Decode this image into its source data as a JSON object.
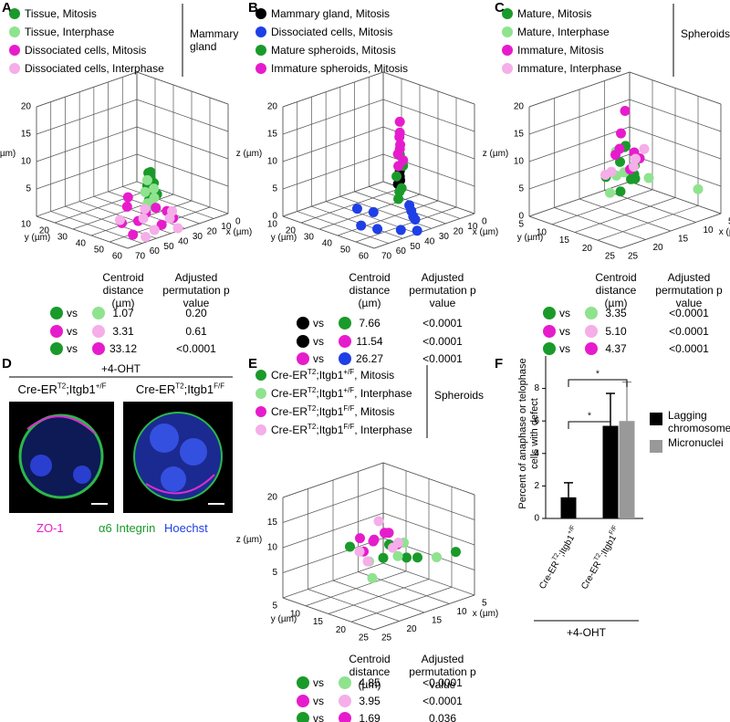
{
  "panels": [
    {
      "label": "A",
      "chart_data": {
        "type": "scatter3d",
        "legend_title": "Mammary gland",
        "xlabel": "x (µm)",
        "ylabel": "y (µm)",
        "zlabel": "z (µm)",
        "xlim": [
          0,
          70
        ],
        "xticks": [
          0,
          10,
          20,
          30,
          40,
          50,
          60,
          70
        ],
        "ylim": [
          10,
          60
        ],
        "yticks": [
          10,
          20,
          30,
          40,
          50,
          60
        ],
        "zlim": [
          0,
          20
        ],
        "zticks": [
          5,
          10,
          15,
          20
        ],
        "series": [
          {
            "name": "Tissue, Mitosis",
            "color": "#1a9a2a",
            "x": [
              35,
              35,
              34,
              36,
              35,
              33,
              36,
              34
            ],
            "y": [
              45,
              45,
              46,
              44,
              45,
              47,
              45,
              43
            ],
            "z": [
              9,
              8,
              7,
              6.5,
              5.5,
              5,
              4,
              8.5
            ]
          },
          {
            "name": "Tissue, Interphase",
            "color": "#8fe38f",
            "x": [
              36,
              34,
              35,
              37,
              33,
              35
            ],
            "y": [
              44,
              46,
              47,
              45,
              44,
              42
            ],
            "z": [
              7.5,
              6,
              4.5,
              3.5,
              2.5,
              5
            ]
          },
          {
            "name": "Dissociated cells, Mitosis",
            "color": "#e61ccc",
            "x": [
              50,
              45,
              40,
              30,
              55,
              38,
              25,
              42,
              60,
              32
            ],
            "y": [
              50,
              40,
              55,
              50,
              45,
              35,
              40,
              48,
              55,
              55
            ],
            "z": [
              2,
              3,
              1,
              2,
              1.5,
              3.5,
              1,
              2.5,
              1,
              1.5
            ]
          },
          {
            "name": "Dissociated cells, Interphase",
            "color": "#f5aee8",
            "x": [
              45,
              35,
              28,
              50,
              40,
              20,
              55,
              30
            ],
            "y": [
              55,
              60,
              50,
              40,
              45,
              45,
              58,
              38
            ],
            "z": [
              0.5,
              0.5,
              0.5,
              1,
              1,
              0.5,
              0.5,
              1
            ]
          }
        ]
      },
      "table": {
        "header": [
          "Centroid distance (µm)",
          "Adjusted permutation p value"
        ],
        "rows": [
          {
            "colors": [
              "#1a9a2a",
              "#8fe38f"
            ],
            "vs": "vs",
            "distance": "1.07",
            "p": "0.20"
          },
          {
            "colors": [
              "#e61ccc",
              "#f5aee8"
            ],
            "vs": "vs",
            "distance": "3.31",
            "p": "0.61"
          },
          {
            "colors": [
              "#1a9a2a",
              "#e61ccc"
            ],
            "vs": "vs",
            "distance": "33.12",
            "p": "<0.0001"
          }
        ]
      }
    },
    {
      "label": "B",
      "chart_data": {
        "type": "scatter3d",
        "xlabel": "x (µm)",
        "ylabel": "y (µm)",
        "zlabel": "z (µm)",
        "xlim": [
          0,
          70
        ],
        "xticks": [
          0,
          10,
          20,
          30,
          40,
          50,
          60,
          70
        ],
        "ylim": [
          10,
          60
        ],
        "yticks": [
          10,
          20,
          30,
          40,
          50,
          60
        ],
        "zlim": [
          0,
          20
        ],
        "zticks": [
          0,
          5,
          10,
          15,
          20
        ],
        "series": [
          {
            "name": "Mammary gland, Mitosis",
            "color": "#000000",
            "x": [
              33,
              33,
              34,
              33
            ],
            "y": [
              45,
              45,
              46,
              44
            ],
            "z": [
              9,
              8,
              7.5,
              6.5
            ]
          },
          {
            "name": "Dissociated cells, Mitosis",
            "color": "#1f3fe6",
            "x": [
              55,
              45,
              40,
              30,
              50,
              35,
              25,
              60,
              20,
              45
            ],
            "y": [
              50,
              40,
              60,
              50,
              35,
              55,
              45,
              45,
              40,
              55
            ],
            "z": [
              1,
              2,
              0.5,
              1,
              2.5,
              1.5,
              1,
              1.5,
              1,
              0.5
            ]
          },
          {
            "name": "Mature spheroids, Mitosis",
            "color": "#1a9a2a",
            "x": [
              33,
              32,
              34,
              33,
              32,
              34
            ],
            "y": [
              45,
              46,
              44,
              46,
              44,
              45
            ],
            "z": [
              12,
              10,
              8,
              6,
              5,
              4
            ]
          },
          {
            "name": "Immature spheroids, Mitosis",
            "color": "#e61ccc",
            "x": [
              33,
              33,
              32,
              34,
              33,
              33,
              32,
              34
            ],
            "y": [
              45,
              45,
              44,
              46,
              45,
              44,
              46,
              45
            ],
            "z": [
              18,
              16,
              15,
              14,
              13,
              12,
              11,
              10
            ]
          }
        ]
      },
      "table": {
        "header": [
          "Centroid distance (µm)",
          "Adjusted permutation p value"
        ],
        "rows": [
          {
            "colors": [
              "#000000",
              "#1a9a2a"
            ],
            "vs": "vs",
            "distance": "7.66",
            "p": "<0.0001"
          },
          {
            "colors": [
              "#000000",
              "#e61ccc"
            ],
            "vs": "vs",
            "distance": "11.54",
            "p": "<0.0001"
          },
          {
            "colors": [
              "#e61ccc",
              "#1f3fe6"
            ],
            "vs": "vs",
            "distance": "26.27",
            "p": "<0.0001"
          }
        ]
      }
    },
    {
      "label": "C",
      "chart_data": {
        "type": "scatter3d",
        "legend_title": "Spheroids",
        "xlabel": "x (µm)",
        "ylabel": "y (µm)",
        "zlabel": "z (µm)",
        "xlim": [
          5,
          25
        ],
        "xticks": [
          5,
          10,
          15,
          20,
          25
        ],
        "ylim": [
          5,
          25
        ],
        "yticks": [
          5,
          10,
          15,
          20,
          25
        ],
        "zlim": [
          0,
          20
        ],
        "zticks": [
          0,
          5,
          10,
          15,
          20
        ],
        "series": [
          {
            "name": "Mature, Mitosis",
            "color": "#1a9a2a",
            "x": [
              14,
              16,
              15,
              13,
              17,
              15,
              16,
              14,
              12
            ],
            "y": [
              14,
              15,
              17,
              15,
              13,
              14,
              16,
              16,
              13
            ],
            "z": [
              12,
              10,
              8,
              6,
              7,
              4,
              13,
              9,
              5
            ]
          },
          {
            "name": "Mature, Interphase",
            "color": "#8fe38f",
            "x": [
              5,
              14,
              17,
              13,
              15,
              18
            ],
            "y": [
              20,
              12,
              17,
              18,
              13,
              15
            ],
            "z": [
              3,
              6,
              9,
              7,
              11,
              5
            ]
          },
          {
            "name": "Immature, Mitosis",
            "color": "#e61ccc",
            "x": [
              15,
              14,
              16,
              17,
              13,
              15,
              14
            ],
            "y": [
              15,
              13,
              14,
              16,
              16,
              17,
              15
            ],
            "z": [
              19,
              14,
              11,
              13,
              10,
              12,
              8
            ]
          },
          {
            "name": "Immature, Interphase",
            "color": "#f5aee8",
            "x": [
              12,
              16,
              18,
              13,
              15
            ],
            "y": [
              14,
              18,
              14,
              17,
              12
            ],
            "z": [
              9,
              10,
              8,
              12,
              7
            ]
          }
        ]
      },
      "table": {
        "header": [
          "Centroid distance (µm)",
          "Adjusted permutation p value"
        ],
        "rows": [
          {
            "colors": [
              "#1a9a2a",
              "#8fe38f"
            ],
            "vs": "vs",
            "distance": "3.35",
            "p": "<0.0001"
          },
          {
            "colors": [
              "#e61ccc",
              "#f5aee8"
            ],
            "vs": "vs",
            "distance": "5.10",
            "p": "<0.0001"
          },
          {
            "colors": [
              "#1a9a2a",
              "#e61ccc"
            ],
            "vs": "vs",
            "distance": "4.37",
            "p": "<0.0001"
          }
        ]
      }
    },
    {
      "label": "D",
      "treatment": "+4-OHT",
      "images": [
        [
          "Cre-ER",
          "T2",
          ";Itgb1",
          "+/F"
        ],
        [
          "Cre-ER",
          "T2",
          ";Itgb1",
          "F/F"
        ]
      ],
      "stains": [
        {
          "text": "ZO-1",
          "color": "#e61ccc"
        },
        {
          "text": "α6",
          "color": "#1a9a2a"
        },
        {
          "text": "Integrin",
          "color": "#1a9a2a"
        },
        {
          "text": "Hoechst",
          "color": "#1f3fe6"
        }
      ]
    },
    {
      "label": "E",
      "chart_data": {
        "type": "scatter3d",
        "legend_title": "Spheroids",
        "xlabel": "x (µm)",
        "ylabel": "y (µm)",
        "zlabel": "z (µm)",
        "xlim": [
          5,
          25
        ],
        "xticks": [
          5,
          10,
          15,
          20,
          25
        ],
        "ylim": [
          5,
          25
        ],
        "yticks": [
          5,
          10,
          15,
          20,
          25
        ],
        "zlim": [
          0,
          20
        ],
        "zticks": [
          5,
          10,
          15,
          20
        ],
        "series": [
          {
            "name": [
              "Cre-ER",
              "T2",
              ";Itgb1",
              "+/F",
              ", Mitosis"
            ],
            "color": "#1a9a2a",
            "x": [
              12,
              15,
              10,
              18,
              14,
              6
            ],
            "y": [
              14,
              16,
              18,
              12,
              20,
              22
            ],
            "z": [
              9,
              8,
              7,
              10,
              9,
              8
            ]
          },
          {
            "name": [
              "Cre-ER",
              "T2",
              ";Itgb1",
              "+/F",
              ", Interphase"
            ],
            "color": "#8fe38f",
            "x": [
              13,
              16,
              10,
              19,
              8
            ],
            "y": [
              17,
              14,
              15,
              18,
              20
            ],
            "z": [
              8,
              7,
              9,
              6,
              7
            ]
          },
          {
            "name": [
              "Cre-ER",
              "T2",
              ";Itgb1",
              "F/F",
              ", Mitosis"
            ],
            "color": "#e61ccc",
            "x": [
              15,
              17,
              13,
              16,
              14,
              18,
              12
            ],
            "y": [
              14,
              16,
              15,
              12,
              18,
              15,
              13
            ],
            "z": [
              11,
              12,
              12,
              11,
              11,
              10,
              11
            ]
          },
          {
            "name": [
              "Cre-ER",
              "T2",
              ";Itgb1",
              "F/F",
              ", Interphase"
            ],
            "color": "#f5aee8",
            "x": [
              15,
              14,
              17,
              12,
              19
            ],
            "y": [
              15,
              17,
              13,
              16,
              17
            ],
            "z": [
              15,
              10,
              9,
              10,
              9
            ]
          }
        ]
      },
      "table": {
        "header": [
          "Centroid distance (µm)",
          "Adjusted permutation p value"
        ],
        "rows": [
          {
            "colors": [
              "#1a9a2a",
              "#8fe38f"
            ],
            "vs": "vs",
            "distance": "4.85",
            "p": "<0.0001"
          },
          {
            "colors": [
              "#e61ccc",
              "#f5aee8"
            ],
            "vs": "vs",
            "distance": "3.95",
            "p": "<0.0001"
          },
          {
            "colors": [
              "#1a9a2a",
              "#e61ccc"
            ],
            "vs": "vs",
            "distance": "1.69",
            "p": "0.036"
          }
        ]
      }
    },
    {
      "label": "F",
      "chart_data": {
        "type": "bar",
        "ylabel": "Percent of anaphase or telophase cells with defect",
        "categories": [
          [
            "Cre-ER",
            "T2",
            ";Itgb1",
            "+/F"
          ],
          [
            "Cre-ER",
            "T2",
            ";Itgb1",
            "F/F"
          ]
        ],
        "series": [
          {
            "name": "Lagging chromosomes",
            "color": "#000000",
            "values": [
              1.3,
              5.7
            ],
            "errors": [
              0.9,
              2.0
            ]
          },
          {
            "name": "Micronuclei",
            "color": "#999999",
            "values": [
              null,
              6.0
            ],
            "errors": [
              null,
              2.4
            ]
          }
        ],
        "ylim": [
          0,
          10
        ],
        "yticks": [
          0,
          2,
          4,
          6,
          8
        ],
        "annotations": [
          "*",
          "*"
        ],
        "footer": "+4-OHT"
      }
    }
  ]
}
